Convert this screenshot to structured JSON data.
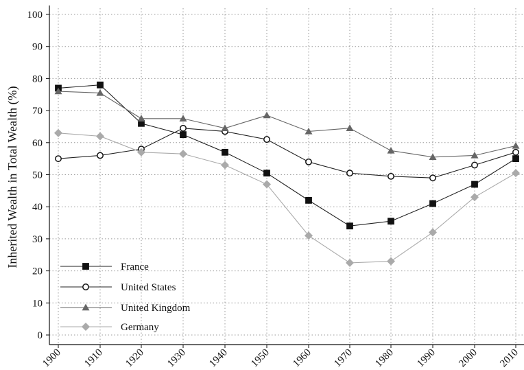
{
  "chart_data": {
    "type": "line",
    "title": "",
    "xlabel": "",
    "ylabel": "Inherited Wealth in Total Wealth (%)",
    "ylim": [
      0,
      100
    ],
    "yticks": [
      "0",
      "10",
      "20",
      "30",
      "40",
      "50",
      "60",
      "70",
      "80",
      "90",
      "100"
    ],
    "x": [
      "1900",
      "1910",
      "1920",
      "1930",
      "1940",
      "1950",
      "1960",
      "1970",
      "1980",
      "1990",
      "2000",
      "2010"
    ],
    "grid": true,
    "legend_position": "bottom-left",
    "series": [
      {
        "name": "France",
        "marker": "square",
        "marker_fill": "#111111",
        "line_color": "#222222",
        "values": [
          77,
          78,
          66,
          62.5,
          57,
          50.5,
          42,
          34,
          35.5,
          41,
          47,
          55
        ]
      },
      {
        "name": "United States",
        "marker": "circle",
        "marker_fill": "#ffffff",
        "line_color": "#222222",
        "values": [
          55,
          56,
          58,
          64.5,
          63.5,
          61,
          54,
          50.5,
          49.5,
          49,
          53,
          57
        ]
      },
      {
        "name": "United Kingdom",
        "marker": "triangle",
        "marker_fill": "#666666",
        "line_color": "#666666",
        "values": [
          76,
          75.5,
          67.5,
          67.5,
          64.5,
          68.5,
          63.5,
          64.5,
          57.5,
          55.5,
          56,
          59
        ]
      },
      {
        "name": "Germany",
        "marker": "diamond",
        "marker_fill": "#aaaaaa",
        "line_color": "#aaaaaa",
        "values": [
          63,
          62,
          57,
          56.5,
          53,
          47,
          31,
          22.5,
          23,
          32,
          43,
          50.5
        ]
      }
    ]
  }
}
